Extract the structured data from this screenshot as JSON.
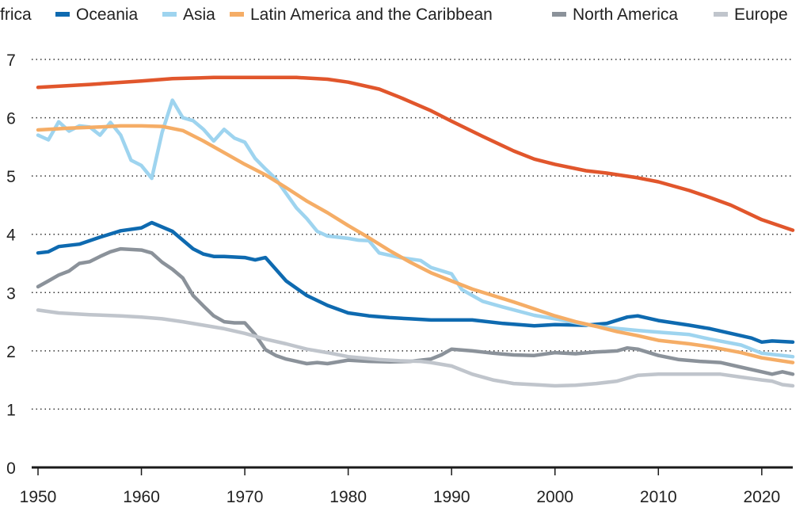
{
  "chart_data": {
    "type": "line",
    "title": "",
    "xlabel": "",
    "ylabel": "",
    "xlim": [
      1950,
      2023
    ],
    "ylim": [
      0,
      7
    ],
    "x_ticks": [
      "1950",
      "1960",
      "1970",
      "1980",
      "1990",
      "2000",
      "2010",
      "2020"
    ],
    "y_ticks": [
      "0",
      "1",
      "2",
      "3",
      "4",
      "5",
      "6",
      "7"
    ],
    "grid": "horizontal-dotted",
    "legend_position": "top",
    "series": [
      {
        "name": "Africa",
        "color": "#e1562c",
        "points": [
          [
            1950,
            6.52
          ],
          [
            1955,
            6.57
          ],
          [
            1960,
            6.63
          ],
          [
            1963,
            6.67
          ],
          [
            1967,
            6.69
          ],
          [
            1970,
            6.69
          ],
          [
            1975,
            6.69
          ],
          [
            1978,
            6.66
          ],
          [
            1980,
            6.61
          ],
          [
            1983,
            6.49
          ],
          [
            1985,
            6.35
          ],
          [
            1988,
            6.12
          ],
          [
            1990,
            5.94
          ],
          [
            1993,
            5.68
          ],
          [
            1996,
            5.43
          ],
          [
            1998,
            5.29
          ],
          [
            2000,
            5.2
          ],
          [
            2003,
            5.09
          ],
          [
            2005,
            5.05
          ],
          [
            2008,
            4.97
          ],
          [
            2010,
            4.9
          ],
          [
            2013,
            4.75
          ],
          [
            2015,
            4.63
          ],
          [
            2017,
            4.5
          ],
          [
            2020,
            4.25
          ],
          [
            2023,
            4.07
          ]
        ]
      },
      {
        "name": "Oceania",
        "color": "#0e6ab0",
        "points": [
          [
            1950,
            3.68
          ],
          [
            1951,
            3.7
          ],
          [
            1952,
            3.79
          ],
          [
            1954,
            3.83
          ],
          [
            1956,
            3.95
          ],
          [
            1958,
            4.06
          ],
          [
            1960,
            4.11
          ],
          [
            1961,
            4.2
          ],
          [
            1963,
            4.05
          ],
          [
            1964,
            3.9
          ],
          [
            1965,
            3.75
          ],
          [
            1966,
            3.66
          ],
          [
            1967,
            3.62
          ],
          [
            1968,
            3.62
          ],
          [
            1970,
            3.6
          ],
          [
            1971,
            3.56
          ],
          [
            1972,
            3.6
          ],
          [
            1974,
            3.2
          ],
          [
            1976,
            2.95
          ],
          [
            1978,
            2.78
          ],
          [
            1980,
            2.65
          ],
          [
            1982,
            2.6
          ],
          [
            1984,
            2.57
          ],
          [
            1986,
            2.55
          ],
          [
            1988,
            2.53
          ],
          [
            1990,
            2.53
          ],
          [
            1992,
            2.53
          ],
          [
            1995,
            2.47
          ],
          [
            1998,
            2.43
          ],
          [
            2000,
            2.45
          ],
          [
            2003,
            2.44
          ],
          [
            2005,
            2.47
          ],
          [
            2007,
            2.58
          ],
          [
            2008,
            2.6
          ],
          [
            2010,
            2.52
          ],
          [
            2013,
            2.44
          ],
          [
            2015,
            2.38
          ],
          [
            2017,
            2.3
          ],
          [
            2019,
            2.22
          ],
          [
            2020,
            2.15
          ],
          [
            2021,
            2.17
          ],
          [
            2023,
            2.15
          ]
        ]
      },
      {
        "name": "Asia",
        "color": "#9ed4ef",
        "points": [
          [
            1950,
            5.7
          ],
          [
            1951,
            5.62
          ],
          [
            1952,
            5.93
          ],
          [
            1953,
            5.77
          ],
          [
            1954,
            5.86
          ],
          [
            1955,
            5.84
          ],
          [
            1956,
            5.7
          ],
          [
            1957,
            5.92
          ],
          [
            1958,
            5.7
          ],
          [
            1959,
            5.27
          ],
          [
            1960,
            5.18
          ],
          [
            1961,
            4.96
          ],
          [
            1962,
            5.75
          ],
          [
            1963,
            6.3
          ],
          [
            1964,
            6.0
          ],
          [
            1965,
            5.95
          ],
          [
            1966,
            5.8
          ],
          [
            1967,
            5.6
          ],
          [
            1968,
            5.8
          ],
          [
            1969,
            5.65
          ],
          [
            1970,
            5.58
          ],
          [
            1971,
            5.3
          ],
          [
            1972,
            5.12
          ],
          [
            1973,
            4.95
          ],
          [
            1974,
            4.7
          ],
          [
            1975,
            4.45
          ],
          [
            1976,
            4.27
          ],
          [
            1977,
            4.05
          ],
          [
            1978,
            3.97
          ],
          [
            1980,
            3.93
          ],
          [
            1981,
            3.9
          ],
          [
            1982,
            3.89
          ],
          [
            1983,
            3.68
          ],
          [
            1985,
            3.6
          ],
          [
            1987,
            3.55
          ],
          [
            1988,
            3.43
          ],
          [
            1990,
            3.32
          ],
          [
            1991,
            3.05
          ],
          [
            1993,
            2.85
          ],
          [
            1995,
            2.75
          ],
          [
            1998,
            2.61
          ],
          [
            2000,
            2.55
          ],
          [
            2003,
            2.45
          ],
          [
            2005,
            2.4
          ],
          [
            2008,
            2.35
          ],
          [
            2010,
            2.32
          ],
          [
            2013,
            2.28
          ],
          [
            2015,
            2.2
          ],
          [
            2018,
            2.1
          ],
          [
            2020,
            1.96
          ],
          [
            2023,
            1.9
          ]
        ]
      },
      {
        "name": "Latin America and the Caribbean",
        "color": "#f5ad66",
        "points": [
          [
            1950,
            5.79
          ],
          [
            1953,
            5.82
          ],
          [
            1956,
            5.84
          ],
          [
            1958,
            5.86
          ],
          [
            1960,
            5.86
          ],
          [
            1962,
            5.85
          ],
          [
            1964,
            5.78
          ],
          [
            1966,
            5.6
          ],
          [
            1968,
            5.4
          ],
          [
            1970,
            5.2
          ],
          [
            1972,
            5.02
          ],
          [
            1974,
            4.8
          ],
          [
            1976,
            4.57
          ],
          [
            1978,
            4.37
          ],
          [
            1980,
            4.15
          ],
          [
            1982,
            3.94
          ],
          [
            1984,
            3.72
          ],
          [
            1986,
            3.52
          ],
          [
            1988,
            3.34
          ],
          [
            1990,
            3.2
          ],
          [
            1992,
            3.06
          ],
          [
            1994,
            2.95
          ],
          [
            1996,
            2.84
          ],
          [
            1998,
            2.72
          ],
          [
            2000,
            2.6
          ],
          [
            2002,
            2.5
          ],
          [
            2004,
            2.42
          ],
          [
            2006,
            2.33
          ],
          [
            2008,
            2.26
          ],
          [
            2010,
            2.18
          ],
          [
            2013,
            2.12
          ],
          [
            2015,
            2.07
          ],
          [
            2018,
            1.97
          ],
          [
            2020,
            1.88
          ],
          [
            2023,
            1.8
          ]
        ]
      },
      {
        "name": "North America",
        "color": "#8b929a",
        "points": [
          [
            1950,
            3.1
          ],
          [
            1951,
            3.2
          ],
          [
            1952,
            3.3
          ],
          [
            1953,
            3.37
          ],
          [
            1954,
            3.5
          ],
          [
            1955,
            3.53
          ],
          [
            1956,
            3.62
          ],
          [
            1957,
            3.7
          ],
          [
            1958,
            3.75
          ],
          [
            1960,
            3.73
          ],
          [
            1961,
            3.68
          ],
          [
            1962,
            3.52
          ],
          [
            1963,
            3.4
          ],
          [
            1964,
            3.25
          ],
          [
            1965,
            2.95
          ],
          [
            1966,
            2.77
          ],
          [
            1967,
            2.6
          ],
          [
            1968,
            2.5
          ],
          [
            1969,
            2.48
          ],
          [
            1970,
            2.48
          ],
          [
            1971,
            2.28
          ],
          [
            1972,
            2.02
          ],
          [
            1973,
            1.92
          ],
          [
            1974,
            1.86
          ],
          [
            1975,
            1.82
          ],
          [
            1976,
            1.78
          ],
          [
            1977,
            1.8
          ],
          [
            1978,
            1.78
          ],
          [
            1980,
            1.84
          ],
          [
            1982,
            1.82
          ],
          [
            1984,
            1.81
          ],
          [
            1986,
            1.82
          ],
          [
            1988,
            1.86
          ],
          [
            1989,
            1.93
          ],
          [
            1990,
            2.03
          ],
          [
            1992,
            2.0
          ],
          [
            1994,
            1.96
          ],
          [
            1996,
            1.93
          ],
          [
            1998,
            1.92
          ],
          [
            2000,
            1.97
          ],
          [
            2002,
            1.95
          ],
          [
            2004,
            1.98
          ],
          [
            2006,
            2.0
          ],
          [
            2007,
            2.05
          ],
          [
            2008,
            2.03
          ],
          [
            2010,
            1.92
          ],
          [
            2012,
            1.85
          ],
          [
            2014,
            1.82
          ],
          [
            2016,
            1.8
          ],
          [
            2018,
            1.72
          ],
          [
            2020,
            1.64
          ],
          [
            2021,
            1.6
          ],
          [
            2022,
            1.64
          ],
          [
            2023,
            1.6
          ]
        ]
      },
      {
        "name": "Europe",
        "color": "#c0c5cc",
        "points": [
          [
            1950,
            2.7
          ],
          [
            1952,
            2.65
          ],
          [
            1955,
            2.62
          ],
          [
            1958,
            2.6
          ],
          [
            1960,
            2.58
          ],
          [
            1962,
            2.55
          ],
          [
            1964,
            2.5
          ],
          [
            1966,
            2.44
          ],
          [
            1968,
            2.38
          ],
          [
            1970,
            2.3
          ],
          [
            1972,
            2.2
          ],
          [
            1974,
            2.12
          ],
          [
            1976,
            2.03
          ],
          [
            1978,
            1.97
          ],
          [
            1980,
            1.9
          ],
          [
            1983,
            1.85
          ],
          [
            1985,
            1.83
          ],
          [
            1987,
            1.82
          ],
          [
            1988,
            1.8
          ],
          [
            1990,
            1.74
          ],
          [
            1992,
            1.6
          ],
          [
            1994,
            1.5
          ],
          [
            1996,
            1.44
          ],
          [
            1998,
            1.42
          ],
          [
            2000,
            1.4
          ],
          [
            2002,
            1.41
          ],
          [
            2004,
            1.44
          ],
          [
            2006,
            1.48
          ],
          [
            2008,
            1.58
          ],
          [
            2010,
            1.6
          ],
          [
            2012,
            1.6
          ],
          [
            2014,
            1.6
          ],
          [
            2016,
            1.6
          ],
          [
            2018,
            1.55
          ],
          [
            2020,
            1.5
          ],
          [
            2021,
            1.48
          ],
          [
            2022,
            1.42
          ],
          [
            2023,
            1.4
          ]
        ]
      }
    ]
  }
}
